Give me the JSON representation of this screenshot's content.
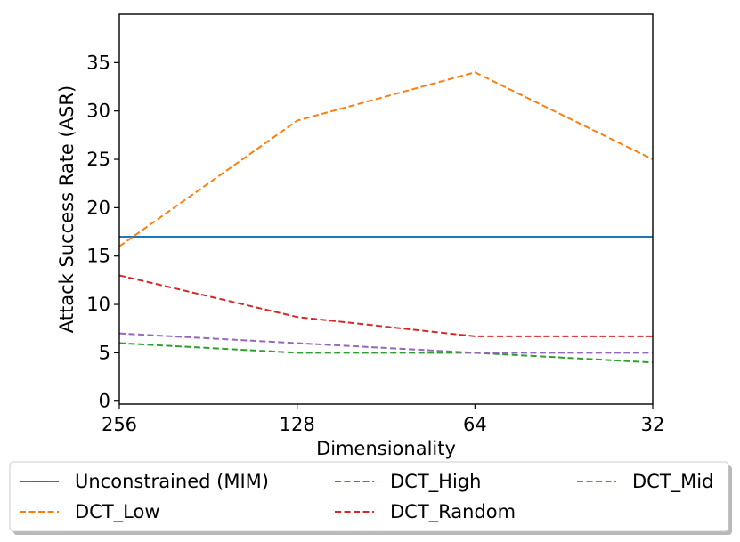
{
  "chart_data": {
    "type": "line",
    "title": "",
    "xlabel": "Dimensionality",
    "ylabel": "Attack Success Rate (ASR)",
    "categories": [
      "256",
      "128",
      "64",
      "32"
    ],
    "ylim": [
      -0.3,
      40
    ],
    "yticks": [
      0,
      5,
      10,
      15,
      20,
      25,
      30,
      35
    ],
    "grid": false,
    "legend_placement": "below",
    "series": [
      {
        "name": "Unconstrained (MIM)",
        "values": [
          17,
          17,
          17,
          17
        ],
        "color": "#1f77b4",
        "style": "solid"
      },
      {
        "name": "DCT_Low",
        "values": [
          16,
          29,
          34,
          25
        ],
        "color": "#ff7f0e",
        "style": "dashed"
      },
      {
        "name": "DCT_High",
        "values": [
          6,
          5,
          5,
          4
        ],
        "color": "#2ca02c",
        "style": "dashed"
      },
      {
        "name": "DCT_Random",
        "values": [
          13,
          8.7,
          6.7,
          6.7
        ],
        "color": "#d62728",
        "style": "dashed"
      },
      {
        "name": "DCT_Mid",
        "values": [
          7,
          6,
          5,
          5
        ],
        "color": "#9467bd",
        "style": "dashed"
      }
    ]
  }
}
